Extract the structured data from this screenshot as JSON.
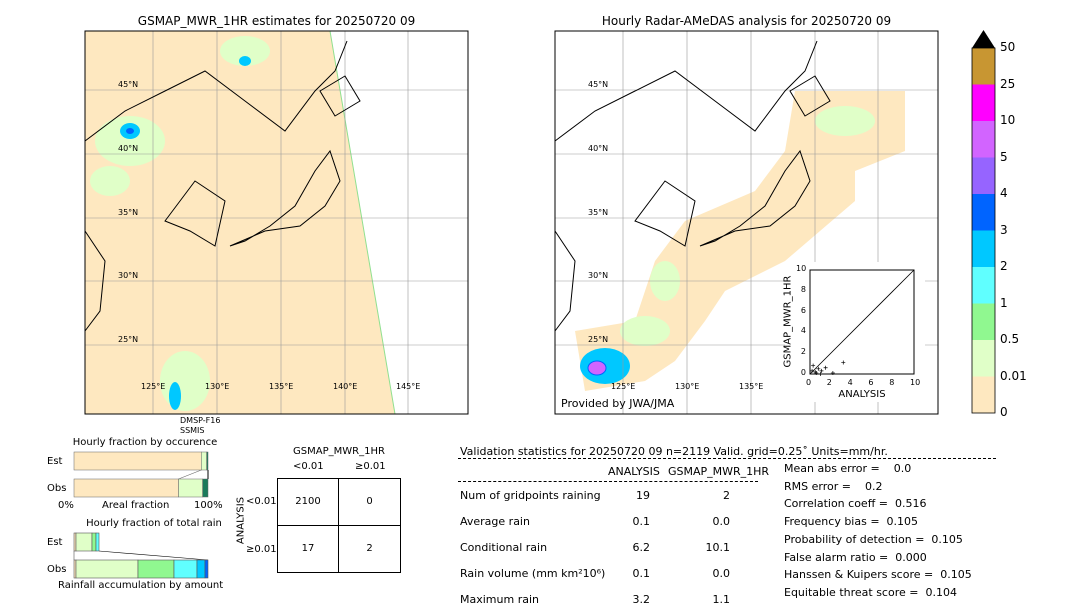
{
  "left_map": {
    "title": "GSMAP_MWR_1HR estimates for 20250720 09",
    "lat_labels": [
      "45°N",
      "40°N",
      "35°N",
      "30°N",
      "25°N"
    ],
    "lon_labels": [
      "125°E",
      "130°E",
      "135°E",
      "140°E",
      "145°E"
    ],
    "sensor_label_1": "DMSP-F16",
    "sensor_label_2": "SSMIS"
  },
  "right_map": {
    "title": "Hourly Radar-AMeDAS analysis for 20250720 09",
    "lat_labels": [
      "45°N",
      "40°N",
      "35°N",
      "30°N",
      "25°N"
    ],
    "lon_labels": [
      "125°E",
      "130°E",
      "135°E"
    ],
    "credit": "Provided by JWA/JMA"
  },
  "colorbar": {
    "labels": [
      "0",
      "0.01",
      "0.5",
      "1",
      "2",
      "3",
      "4",
      "5",
      "10",
      "25",
      "50"
    ],
    "colors": [
      "#fee8c0",
      "#e0ffc8",
      "#90f890",
      "#60ffff",
      "#00c8ff",
      "#0064ff",
      "#9664ff",
      "#d264ff",
      "#ff00ff",
      "#c89632"
    ],
    "extend_color": "#000000"
  },
  "chart_data": [
    {
      "type": "scatter",
      "xlabel": "ANALYSIS",
      "ylabel": "GSMAP_MWR_1HR",
      "xlim": [
        0,
        10
      ],
      "ylim": [
        0,
        10
      ],
      "ticks": [
        "0",
        "2",
        "4",
        "6",
        "8",
        "10"
      ],
      "points": [
        [
          0.2,
          0.3
        ],
        [
          0.5,
          0.2
        ],
        [
          0.8,
          0.5
        ],
        [
          1.1,
          0.3
        ],
        [
          0.3,
          0.8
        ],
        [
          1.5,
          0.6
        ],
        [
          2.2,
          0.1
        ],
        [
          3.2,
          1.1
        ],
        [
          0.6,
          0.1
        ],
        [
          1.0,
          0.0
        ]
      ]
    },
    {
      "type": "bar",
      "title": "Hourly fraction by occurence",
      "xlabel": "Areal fraction",
      "x_tick_labels": [
        "0%",
        "100%"
      ],
      "categories": [
        "Est",
        "Obs"
      ],
      "series": [
        {
          "values": [
            [
              0.0,
              0.95
            ],
            [
              0.0,
              0.78
            ]
          ]
        },
        {
          "values": [
            [
              0.95,
              0.99
            ],
            [
              0.78,
              0.96
            ]
          ]
        },
        {
          "values": [
            [
              0.99,
              1.0
            ],
            [
              0.96,
              1.0
            ]
          ]
        }
      ]
    },
    {
      "type": "bar",
      "title": "Hourly fraction of total rain",
      "xlabel": "Rainfall accumulation by amount",
      "categories": [
        "Est",
        "Obs"
      ]
    }
  ],
  "contingency": {
    "title": "GSMAP_MWR_1HR",
    "col_labels": [
      "<0.01",
      "≥0.01"
    ],
    "row_axis": "ANALYSIS",
    "row_labels": [
      "<0.01",
      "≥0.01"
    ],
    "cells": [
      [
        "2100",
        "0"
      ],
      [
        "17",
        "2"
      ]
    ]
  },
  "stats": {
    "header": "Validation statistics for 20250720 09  n=2119 Valid. grid=0.25˚ Units=mm/hr.",
    "col1": "ANALYSIS",
    "col2": "GSMAP_MWR_1HR",
    "rows": [
      {
        "label": "Num of gridpoints raining",
        "a": "19",
        "g": "2"
      },
      {
        "label": "Average rain",
        "a": "0.1",
        "g": "0.0"
      },
      {
        "label": "Conditional rain",
        "a": "6.2",
        "g": "10.1"
      },
      {
        "label": "Rain volume (mm km²10⁶)",
        "a": "0.1",
        "g": "0.0"
      },
      {
        "label": "Maximum rain",
        "a": "3.2",
        "g": "1.1"
      }
    ],
    "scores": [
      "Mean abs error =    0.0",
      "RMS error =    0.2",
      "Correlation coeff =  0.516",
      "Frequency bias =  0.105",
      "Probability of detection =  0.105",
      "False alarm ratio =  0.000",
      "Hanssen & Kuipers score =  0.105",
      "Equitable threat score =  0.104"
    ]
  }
}
